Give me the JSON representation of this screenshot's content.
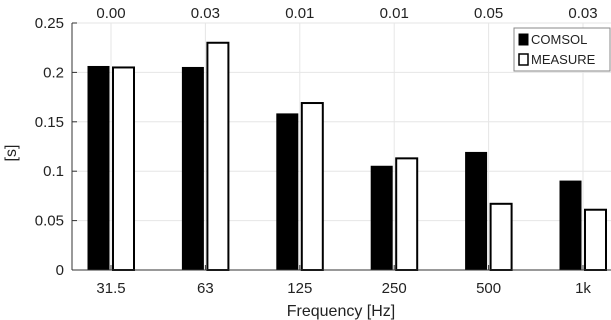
{
  "chart_data": {
    "type": "bar",
    "categories": [
      "31.5",
      "63",
      "125",
      "250",
      "500",
      "1k"
    ],
    "series": [
      {
        "name": "COMSOL",
        "values": [
          0.206,
          0.205,
          0.158,
          0.105,
          0.119,
          0.09
        ]
      },
      {
        "name": "MEASURE",
        "values": [
          0.205,
          0.23,
          0.169,
          0.113,
          0.067,
          0.061
        ]
      }
    ],
    "top_labels": [
      "0.00",
      "0.03",
      "0.01",
      "0.01",
      "0.05",
      "0.03"
    ],
    "xlabel": "Frequency [Hz]",
    "ylabel": "[s]",
    "ylim": [
      0,
      0.25
    ],
    "yticks": [
      "0",
      "0.05",
      "0.1",
      "0.15",
      "0.2",
      "0.25"
    ],
    "grid": true,
    "legend_position": "top-right",
    "colors": {
      "COMSOL": "#000000",
      "MEASURE": "#ffffff",
      "bar_edge": "#000000",
      "grid": "#e6e6e6"
    }
  }
}
